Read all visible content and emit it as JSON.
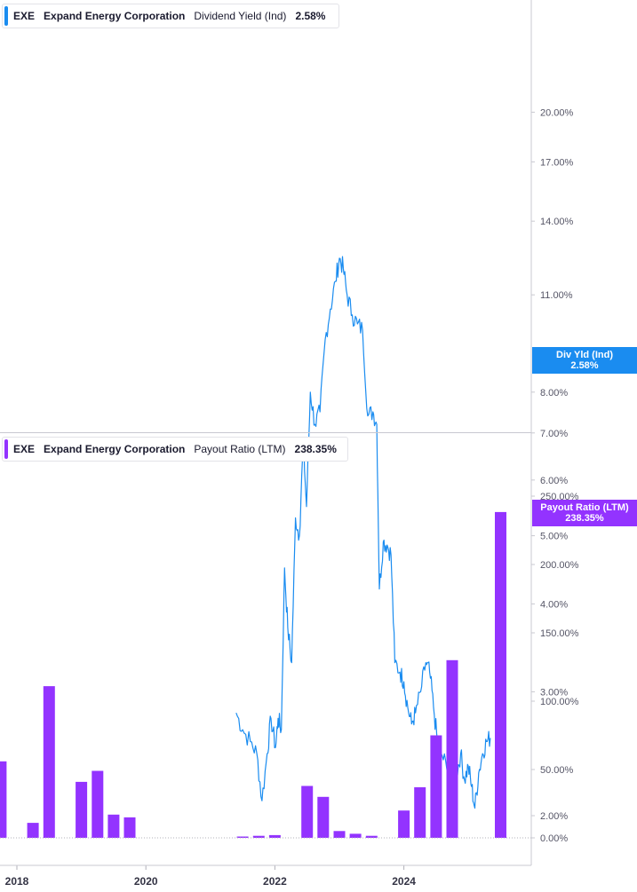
{
  "colors": {
    "yield": "#1a8cf0",
    "payout": "#9333ff"
  },
  "yield_panel": {
    "legend": {
      "ticker": "EXE",
      "company": "Expand Energy Corporation",
      "metric": "Dividend Yield (Ind)",
      "value": "2.58%"
    },
    "callout": {
      "label": "Div Yld (Ind)",
      "value": "2.58%"
    }
  },
  "payout_panel": {
    "legend": {
      "ticker": "EXE",
      "company": "Expand Energy Corporation",
      "metric": "Payout Ratio (LTM)",
      "value": "238.35%"
    },
    "callout": {
      "label": "Payout Ratio (LTM)",
      "value": "238.35%"
    }
  },
  "chart_data": [
    {
      "type": "line",
      "title": "",
      "series": [
        {
          "name": "Dividend Yield (Ind)"
        }
      ],
      "scale": "log",
      "ylim": [
        1.9,
        20.0
      ],
      "y_tick_labels": [
        "20.00%",
        "17.00%",
        "14.00%",
        "11.00%",
        "8.00%",
        "7.00%",
        "6.00%",
        "5.00%",
        "4.00%",
        "3.00%",
        "2.00%"
      ],
      "y_ticks": [
        20,
        17,
        14,
        11,
        8,
        7,
        6,
        5,
        4,
        3,
        2
      ],
      "points": [
        [
          2021.4,
          2.8
        ],
        [
          2021.5,
          2.65
        ],
        [
          2021.62,
          2.55
        ],
        [
          2021.72,
          2.45
        ],
        [
          2021.8,
          2.1
        ],
        [
          2021.88,
          2.45
        ],
        [
          2021.94,
          2.75
        ],
        [
          2022.01,
          2.5
        ],
        [
          2022.05,
          2.75
        ],
        [
          2022.1,
          2.65
        ],
        [
          2022.15,
          4.5
        ],
        [
          2022.2,
          3.7
        ],
        [
          2022.26,
          3.3
        ],
        [
          2022.32,
          5.3
        ],
        [
          2022.38,
          5.0
        ],
        [
          2022.44,
          6.8
        ],
        [
          2022.49,
          5.5
        ],
        [
          2022.55,
          8.0
        ],
        [
          2022.62,
          7.2
        ],
        [
          2022.7,
          7.5
        ],
        [
          2022.78,
          9.5
        ],
        [
          2022.86,
          10.5
        ],
        [
          2022.94,
          11.5
        ],
        [
          2023.0,
          12.4
        ],
        [
          2023.06,
          12.0
        ],
        [
          2023.12,
          11.0
        ],
        [
          2023.2,
          10.3
        ],
        [
          2023.28,
          10.0
        ],
        [
          2023.36,
          9.8
        ],
        [
          2023.44,
          7.4
        ],
        [
          2023.52,
          7.5
        ],
        [
          2023.58,
          7.2
        ],
        [
          2023.62,
          4.2
        ],
        [
          2023.68,
          4.9
        ],
        [
          2023.74,
          4.85
        ],
        [
          2023.8,
          4.7
        ],
        [
          2023.86,
          3.3
        ],
        [
          2023.94,
          3.2
        ],
        [
          2024.0,
          3.1
        ],
        [
          2024.06,
          2.85
        ],
        [
          2024.12,
          2.7
        ],
        [
          2024.18,
          2.8
        ],
        [
          2024.26,
          3.0
        ],
        [
          2024.34,
          3.3
        ],
        [
          2024.4,
          3.2
        ],
        [
          2024.46,
          2.85
        ],
        [
          2024.52,
          2.55
        ],
        [
          2024.58,
          2.45
        ],
        [
          2024.66,
          2.35
        ],
        [
          2024.74,
          2.4
        ],
        [
          2024.82,
          2.3
        ],
        [
          2024.88,
          2.45
        ],
        [
          2024.94,
          2.25
        ],
        [
          2025.0,
          2.35
        ],
        [
          2025.05,
          2.2
        ],
        [
          2025.1,
          2.05
        ],
        [
          2025.16,
          2.3
        ],
        [
          2025.22,
          2.45
        ],
        [
          2025.28,
          2.55
        ],
        [
          2025.34,
          2.58
        ]
      ]
    },
    {
      "type": "bar",
      "title": "",
      "series": [
        {
          "name": "Payout Ratio (LTM)"
        }
      ],
      "ylim": [
        0,
        250
      ],
      "y_tick_labels": [
        "250.00%",
        "200.00%",
        "150.00%",
        "100.00%",
        "50.00%",
        "0.00%"
      ],
      "y_ticks": [
        250,
        200,
        150,
        100,
        50,
        0
      ],
      "x_tick_labels": [
        "2018",
        "2020",
        "2022",
        "2024"
      ],
      "x_ticks": [
        2018,
        2020,
        2022,
        2024
      ],
      "points": [
        [
          2017.75,
          56
        ],
        [
          2018.25,
          11
        ],
        [
          2018.5,
          111
        ],
        [
          2019.0,
          41
        ],
        [
          2019.25,
          49
        ],
        [
          2019.5,
          17
        ],
        [
          2019.75,
          15
        ],
        [
          2021.5,
          1
        ],
        [
          2021.75,
          1.5
        ],
        [
          2022.0,
          2
        ],
        [
          2022.5,
          38
        ],
        [
          2022.75,
          30
        ],
        [
          2023.0,
          5
        ],
        [
          2023.25,
          3
        ],
        [
          2023.5,
          1.5
        ],
        [
          2024.0,
          20
        ],
        [
          2024.25,
          37
        ],
        [
          2024.5,
          75
        ],
        [
          2024.75,
          130
        ],
        [
          2025.5,
          238.35
        ]
      ]
    }
  ]
}
